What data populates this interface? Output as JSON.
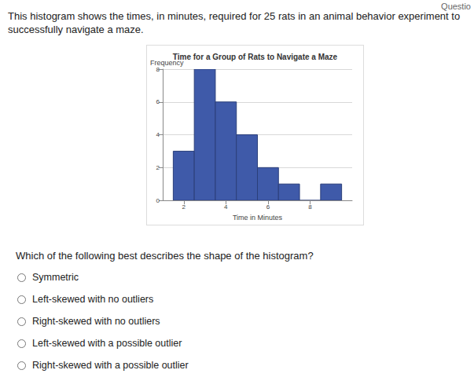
{
  "header": "Questio",
  "intro": "This histogram shows the times, in minutes, required for 25 rats in an animal behavior experiment to successfully navigate a maze.",
  "chart_data": {
    "type": "histogram",
    "title": "Time for a Group of Rats to Navigate a Maze",
    "xlabel": "Time in Minutes",
    "ylabel": "Frequency",
    "bins": [
      1.5,
      2.5,
      3.5,
      4.5,
      5.5,
      6.5,
      7.5,
      8.5,
      9.5
    ],
    "values": [
      3,
      8,
      6,
      4,
      2,
      1,
      0,
      1
    ],
    "color": "#3f5aa9",
    "xlim": [
      1,
      10
    ],
    "xticks": [
      2,
      4,
      6,
      8
    ],
    "ylim": [
      0,
      8
    ],
    "yticks": [
      0,
      2,
      4,
      6,
      8
    ],
    "grid": true
  },
  "question": "Which of the following best describes the shape of the histogram?",
  "options": [
    "Symmetric",
    "Left-skewed with no outliers",
    "Right-skewed with no outliers",
    "Left-skewed with a possible outlier",
    "Right-skewed with a possible outlier"
  ]
}
